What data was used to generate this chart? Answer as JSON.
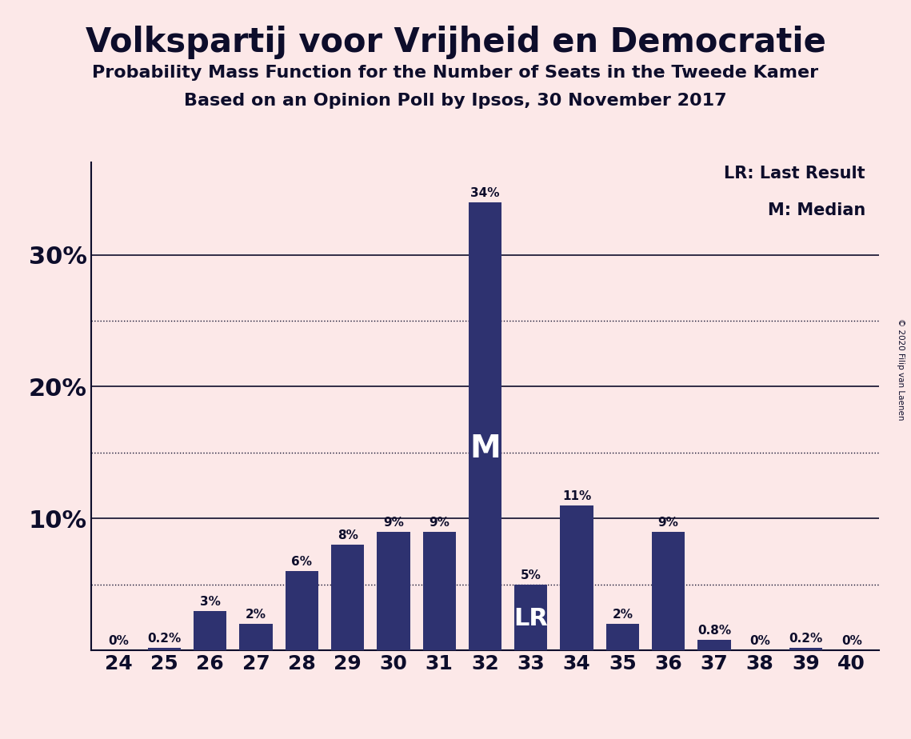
{
  "title": "Volkspartij voor Vrijheid en Democratie",
  "subtitle1": "Probability Mass Function for the Number of Seats in the Tweede Kamer",
  "subtitle2": "Based on an Opinion Poll by Ipsos, 30 November 2017",
  "copyright": "© 2020 Filip van Laenen",
  "categories": [
    24,
    25,
    26,
    27,
    28,
    29,
    30,
    31,
    32,
    33,
    34,
    35,
    36,
    37,
    38,
    39,
    40
  ],
  "values": [
    0.0,
    0.2,
    3.0,
    2.0,
    6.0,
    8.0,
    9.0,
    9.0,
    34.0,
    5.0,
    11.0,
    2.0,
    9.0,
    0.8,
    0.0,
    0.2,
    0.0
  ],
  "labels": [
    "0%",
    "0.2%",
    "3%",
    "2%",
    "6%",
    "8%",
    "9%",
    "9%",
    "34%",
    "5%",
    "11%",
    "2%",
    "9%",
    "0.8%",
    "0%",
    "0.2%",
    "0%"
  ],
  "bar_color": "#2e3270",
  "background_color": "#fce8e8",
  "text_color": "#0d0d2b",
  "median_seat": 32,
  "last_result_seat": 33,
  "legend_lr": "LR: Last Result",
  "legend_m": "M: Median",
  "ylim": [
    0,
    37
  ],
  "yticks": [
    10,
    20,
    30
  ],
  "ytick_labels": [
    "10%",
    "20%",
    "30%"
  ],
  "dotted_lines": [
    5,
    15,
    25
  ],
  "solid_lines": [
    10,
    20,
    30
  ]
}
